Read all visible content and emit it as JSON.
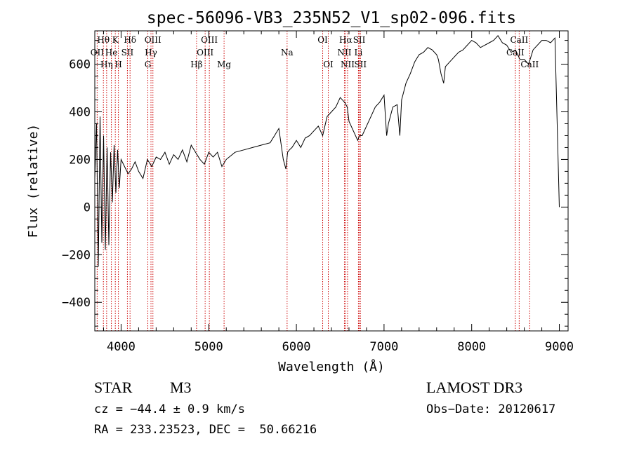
{
  "chart_data": {
    "type": "line",
    "title": "spec-56096-VB3_235N52_V1_sp02-096.fits",
    "xlabel": "Wavelength (Å)",
    "ylabel": "Flux (relative)",
    "xlim": [
      3700,
      9100
    ],
    "ylim": [
      -520,
      740
    ],
    "x_ticks": [
      4000,
      5000,
      6000,
      7000,
      8000,
      9000
    ],
    "y_ticks": [
      -400,
      -200,
      0,
      200,
      400,
      600
    ],
    "grid": false,
    "series": [
      {
        "name": "spectrum",
        "x": [
          3700,
          3720,
          3740,
          3760,
          3780,
          3800,
          3820,
          3840,
          3860,
          3880,
          3900,
          3920,
          3940,
          3960,
          3980,
          4000,
          4040,
          4080,
          4120,
          4160,
          4200,
          4250,
          4300,
          4350,
          4400,
          4450,
          4500,
          4550,
          4600,
          4650,
          4700,
          4750,
          4800,
          4850,
          4900,
          4950,
          5000,
          5050,
          5100,
          5150,
          5200,
          5300,
          5400,
          5500,
          5600,
          5700,
          5750,
          5800,
          5850,
          5880,
          5900,
          5920,
          5950,
          6000,
          6050,
          6100,
          6150,
          6200,
          6250,
          6300,
          6350,
          6400,
          6450,
          6500,
          6550,
          6580,
          6600,
          6650,
          6700,
          6720,
          6750,
          6800,
          6850,
          6900,
          6950,
          7000,
          7030,
          7050,
          7100,
          7150,
          7180,
          7200,
          7250,
          7300,
          7350,
          7400,
          7450,
          7500,
          7550,
          7600,
          7620,
          7650,
          7680,
          7700,
          7750,
          7800,
          7850,
          7900,
          7950,
          8000,
          8050,
          8100,
          8150,
          8200,
          8250,
          8300,
          8350,
          8400,
          8450,
          8500,
          8550,
          8600,
          8650,
          8700,
          8750,
          8800,
          8850,
          8900,
          8950,
          9000
        ],
        "values": [
          120,
          350,
          -250,
          380,
          -150,
          300,
          -180,
          250,
          -160,
          230,
          20,
          260,
          60,
          240,
          80,
          200,
          170,
          140,
          160,
          190,
          150,
          120,
          200,
          170,
          210,
          200,
          230,
          180,
          220,
          200,
          240,
          190,
          260,
          230,
          200,
          180,
          230,
          210,
          230,
          170,
          200,
          230,
          240,
          250,
          260,
          270,
          300,
          330,
          200,
          160,
          230,
          240,
          250,
          280,
          250,
          290,
          300,
          320,
          340,
          300,
          380,
          400,
          420,
          460,
          440,
          420,
          360,
          320,
          280,
          300,
          300,
          340,
          380,
          420,
          440,
          470,
          300,
          350,
          420,
          430,
          300,
          450,
          520,
          560,
          610,
          640,
          650,
          670,
          660,
          640,
          620,
          560,
          520,
          590,
          610,
          630,
          650,
          660,
          680,
          700,
          690,
          670,
          680,
          690,
          700,
          720,
          690,
          680,
          650,
          660,
          620,
          620,
          600,
          660,
          680,
          700,
          700,
          690,
          710,
          0
        ]
      }
    ],
    "emission_lines": [
      {
        "label": "Hθ",
        "x": 3798,
        "row": 0
      },
      {
        "label": "OII",
        "x": 3727,
        "row": 1
      },
      {
        "label": "Hη",
        "x": 3835,
        "row": 2
      },
      {
        "label": "K",
        "x": 3934,
        "row": 0
      },
      {
        "label": "He",
        "x": 3889,
        "row": 1
      },
      {
        "label": "H",
        "x": 3969,
        "row": 2
      },
      {
        "label": "Hδ",
        "x": 4102,
        "row": 0
      },
      {
        "label": "SII",
        "x": 4072,
        "row": 1
      },
      {
        "label": "OIII",
        "x": 4363,
        "row": 0
      },
      {
        "label": "Hγ",
        "x": 4341,
        "row": 1
      },
      {
        "label": "G",
        "x": 4305,
        "row": 2
      },
      {
        "label": "OIII",
        "x": 5007,
        "row": 0
      },
      {
        "label": "OIII",
        "x": 4959,
        "row": 1
      },
      {
        "label": "Hβ",
        "x": 4861,
        "row": 2
      },
      {
        "label": "Mg",
        "x": 5175,
        "row": 2
      },
      {
        "label": "Na",
        "x": 5894,
        "row": 1
      },
      {
        "label": "OI",
        "x": 6300,
        "row": 0
      },
      {
        "label": "OI",
        "x": 6364,
        "row": 2
      },
      {
        "label": "Hα",
        "x": 6563,
        "row": 0
      },
      {
        "label": "SII",
        "x": 6717,
        "row": 0
      },
      {
        "label": "NII",
        "x": 6548,
        "row": 1
      },
      {
        "label": "Li",
        "x": 6708,
        "row": 1
      },
      {
        "label": "NII",
        "x": 6584,
        "row": 2
      },
      {
        "label": "SII",
        "x": 6731,
        "row": 2
      },
      {
        "label": "CaII",
        "x": 8542,
        "row": 0
      },
      {
        "label": "CaII",
        "x": 8498,
        "row": 1
      },
      {
        "label": "CaII",
        "x": 8662,
        "row": 2
      }
    ]
  },
  "info": {
    "object_type": "STAR",
    "subclass": "M3",
    "survey": "LAMOST DR3",
    "cz": "cz = −44.4 ± 0.9 km/s",
    "obs_date": "Obs−Date: 20120617",
    "coords": "RA = 233.23523, DEC =  50.66216"
  },
  "colors": {
    "line": "#000000",
    "marker_lines": "#cc0000",
    "background": "#ffffff"
  }
}
